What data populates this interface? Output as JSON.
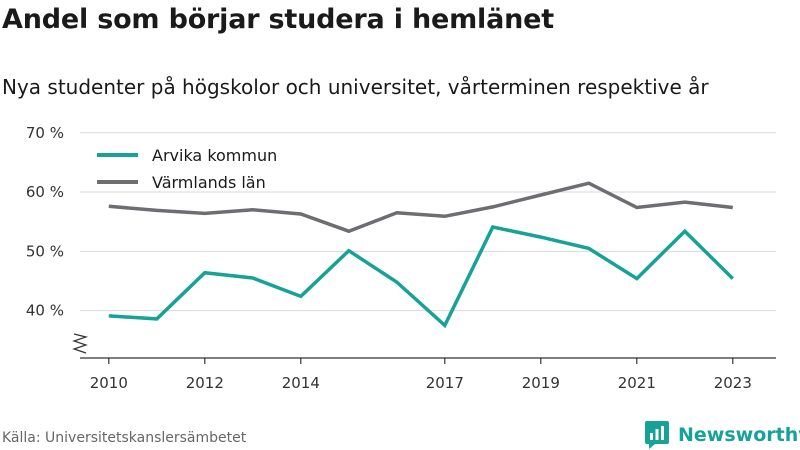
{
  "title": "Andel som börjar studera i hemlänet",
  "subtitle": "Nya studenter på högskolor och universitet, vårterminen respektive år",
  "source": "Källa: Universitetskanslersämbetet",
  "brand": "Newsworthy",
  "colors": {
    "series1": "#16a296",
    "series2": "#6e6e72",
    "brand": "#16a296"
  },
  "icons": {
    "axis_break": "axis-break-zigzag",
    "logo": "newsworthy-logo-icon"
  },
  "chart_data": {
    "type": "line",
    "x": [
      2010,
      2011,
      2012,
      2013,
      2014,
      2015,
      2016,
      2017,
      2018,
      2019,
      2020,
      2021,
      2022,
      2023
    ],
    "x_ticks": [
      "2010",
      "2012",
      "2014",
      "2017",
      "2019",
      "2021",
      "2023"
    ],
    "x_tick_values": [
      2010,
      2012,
      2014,
      2017,
      2019,
      2021,
      2023
    ],
    "y_ticks": [
      "40 %",
      "50 %",
      "60 %",
      "70 %"
    ],
    "y_tick_values": [
      40,
      50,
      60,
      70
    ],
    "ylim": [
      32,
      70
    ],
    "grid": "horizontal",
    "legend_position": "top-left",
    "series": [
      {
        "name": "Arvika kommun",
        "values": [
          39.1,
          38.6,
          46.4,
          45.5,
          42.4,
          50.1,
          44.8,
          37.5,
          54.1,
          52.4,
          50.5,
          45.4,
          53.4,
          45.4
        ]
      },
      {
        "name": "Värmlands län",
        "values": [
          57.6,
          56.9,
          56.4,
          57.0,
          56.3,
          53.4,
          56.5,
          55.9,
          57.5,
          59.5,
          61.5,
          57.4,
          58.3,
          57.4
        ]
      }
    ]
  }
}
